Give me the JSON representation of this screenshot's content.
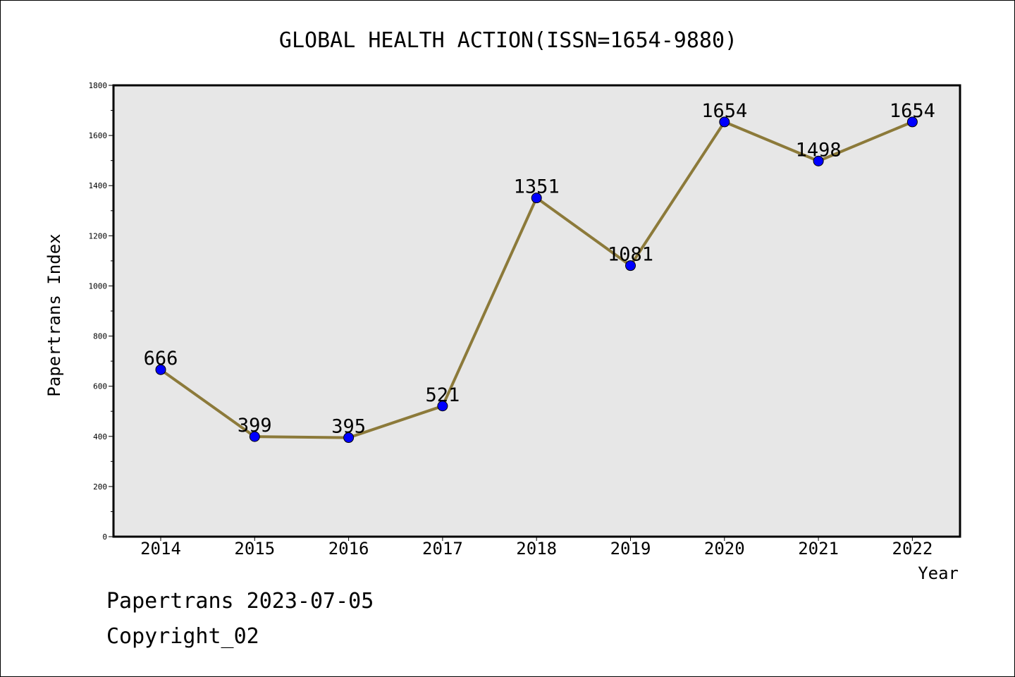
{
  "chart_data": {
    "type": "line",
    "title": "GLOBAL HEALTH ACTION(ISSN=1654-9880)",
    "xlabel": "Year",
    "ylabel": "Papertrans Index",
    "categories": [
      "2014",
      "2015",
      "2016",
      "2017",
      "2018",
      "2019",
      "2020",
      "2021",
      "2022"
    ],
    "series": [
      {
        "values": [
          666,
          399,
          395,
          521,
          1351,
          1081,
          1654,
          1498,
          1654
        ]
      }
    ],
    "data_labels": [
      "666",
      "399",
      "395",
      "521",
      "1351",
      "1081",
      "1654",
      "1498",
      "1654"
    ],
    "ylim": [
      0,
      1800
    ],
    "yticks_major": [
      0,
      200,
      400,
      600,
      800,
      1000,
      1200,
      1400,
      1600,
      1800
    ],
    "yticks_minor": [
      100,
      300,
      500,
      700,
      900,
      1100,
      1300,
      1500,
      1700
    ],
    "grid": false,
    "legend": "none",
    "colors": {
      "plot_background": "#e7e7e7",
      "line": "#8c7a3a",
      "marker": "#0000ff"
    }
  },
  "footer": {
    "date_line": "Papertrans 2023-07-05",
    "copyright_line": "Copyright_02"
  }
}
